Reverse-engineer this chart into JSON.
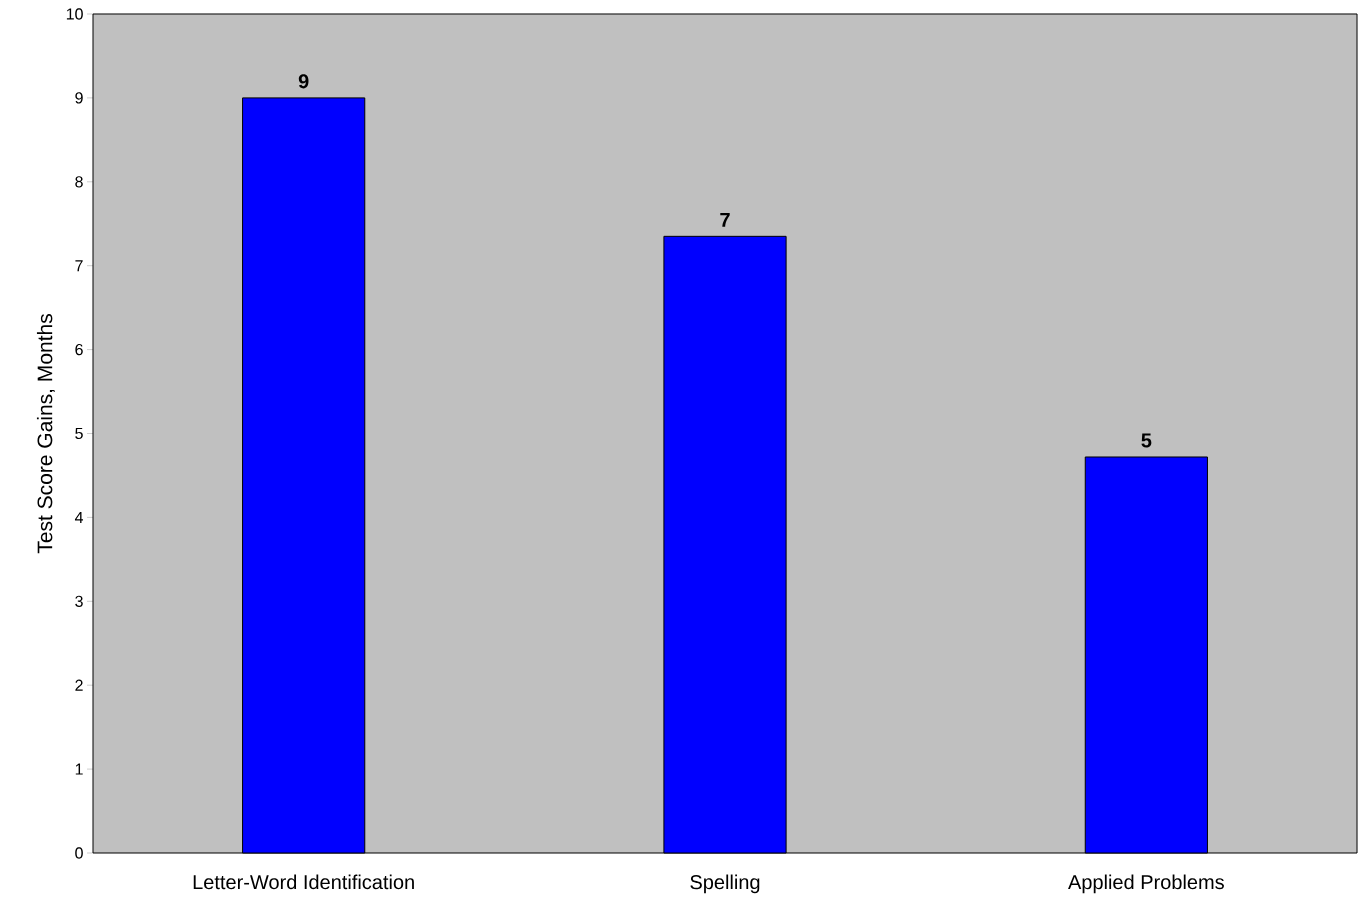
{
  "chart_data": {
    "type": "bar",
    "ylabel": "Test Score Gains, Months",
    "categories": [
      "Letter-Word Identification",
      "Spelling",
      "Applied Problems"
    ],
    "values": [
      9,
      7.35,
      4.72
    ],
    "value_labels": [
      "9",
      "7",
      "5"
    ],
    "color": "#0000ff",
    "ylim": [
      0,
      10
    ],
    "yticks": [
      0,
      1,
      2,
      3,
      4,
      5,
      6,
      7,
      8,
      9,
      10
    ]
  }
}
